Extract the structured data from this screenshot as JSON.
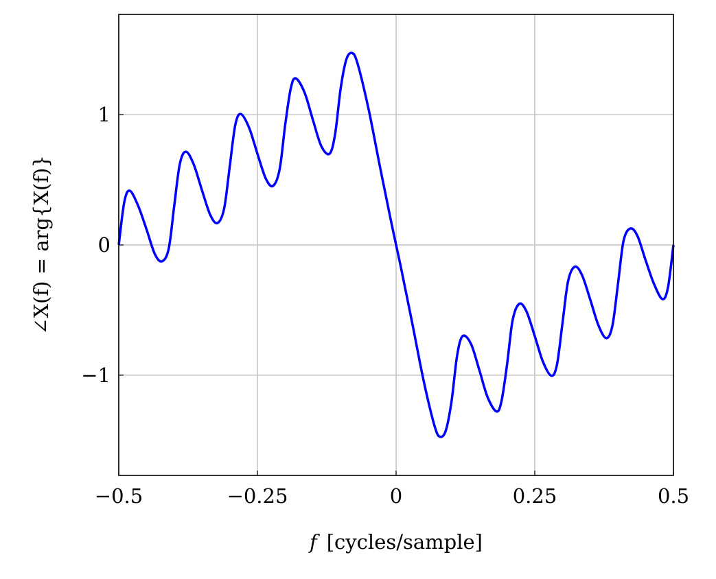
{
  "chart_data": {
    "type": "line",
    "title": "",
    "xlabel_var": "f",
    "xlabel_unit": "[cycles/sample]",
    "ylabel": "∠X(f) = arg{X(f)}",
    "xlim": [
      -0.5,
      0.5
    ],
    "ylim": [
      -1.77,
      1.77
    ],
    "grid": true,
    "xticks": [
      -0.5,
      -0.25,
      0,
      0.25,
      0.5
    ],
    "xtick_labels": [
      "−0.5",
      "−0.25",
      "0",
      "0.25",
      "0.5"
    ],
    "yticks": [
      -1,
      0,
      1
    ],
    "ytick_labels": [
      "−1",
      "0",
      "1"
    ],
    "series": [
      {
        "color": "#0000ff",
        "x": [
          -0.5,
          -0.49,
          -0.48,
          -0.465,
          -0.45,
          -0.435,
          -0.422,
          -0.41,
          -0.4,
          -0.39,
          -0.379,
          -0.365,
          -0.35,
          -0.335,
          -0.322,
          -0.31,
          -0.3,
          -0.29,
          -0.28,
          -0.265,
          -0.25,
          -0.235,
          -0.222,
          -0.21,
          -0.2,
          -0.19,
          -0.181,
          -0.165,
          -0.15,
          -0.135,
          -0.12,
          -0.11,
          -0.1,
          -0.09,
          -0.08,
          -0.07,
          -0.05,
          -0.03,
          -0.01,
          0,
          0.01,
          0.03,
          0.05,
          0.07,
          0.08,
          0.09,
          0.1,
          0.11,
          0.12,
          0.135,
          0.15,
          0.165,
          0.181,
          0.19,
          0.2,
          0.21,
          0.222,
          0.235,
          0.25,
          0.265,
          0.28,
          0.29,
          0.3,
          0.31,
          0.322,
          0.335,
          0.35,
          0.365,
          0.379,
          0.39,
          0.4,
          0.41,
          0.422,
          0.435,
          0.45,
          0.465,
          0.48,
          0.49,
          0.5
        ],
        "y": [
          0,
          0.33,
          0.416,
          0.3,
          0.12,
          -0.07,
          -0.126,
          -0.03,
          0.3,
          0.62,
          0.716,
          0.62,
          0.42,
          0.23,
          0.168,
          0.28,
          0.6,
          0.92,
          1.005,
          0.9,
          0.7,
          0.51,
          0.453,
          0.58,
          0.92,
          1.2,
          1.279,
          1.17,
          0.96,
          0.76,
          0.7,
          0.85,
          1.2,
          1.42,
          1.474,
          1.4,
          1.05,
          0.62,
          0.2,
          0,
          -0.2,
          -0.62,
          -1.05,
          -1.4,
          -1.474,
          -1.42,
          -1.2,
          -0.85,
          -0.7,
          -0.76,
          -0.96,
          -1.17,
          -1.279,
          -1.2,
          -0.92,
          -0.58,
          -0.453,
          -0.51,
          -0.7,
          -0.9,
          -1.005,
          -0.92,
          -0.6,
          -0.28,
          -0.168,
          -0.23,
          -0.42,
          -0.62,
          -0.716,
          -0.62,
          -0.3,
          0.03,
          0.126,
          0.07,
          -0.12,
          -0.3,
          -0.416,
          -0.33,
          0
        ]
      }
    ]
  }
}
